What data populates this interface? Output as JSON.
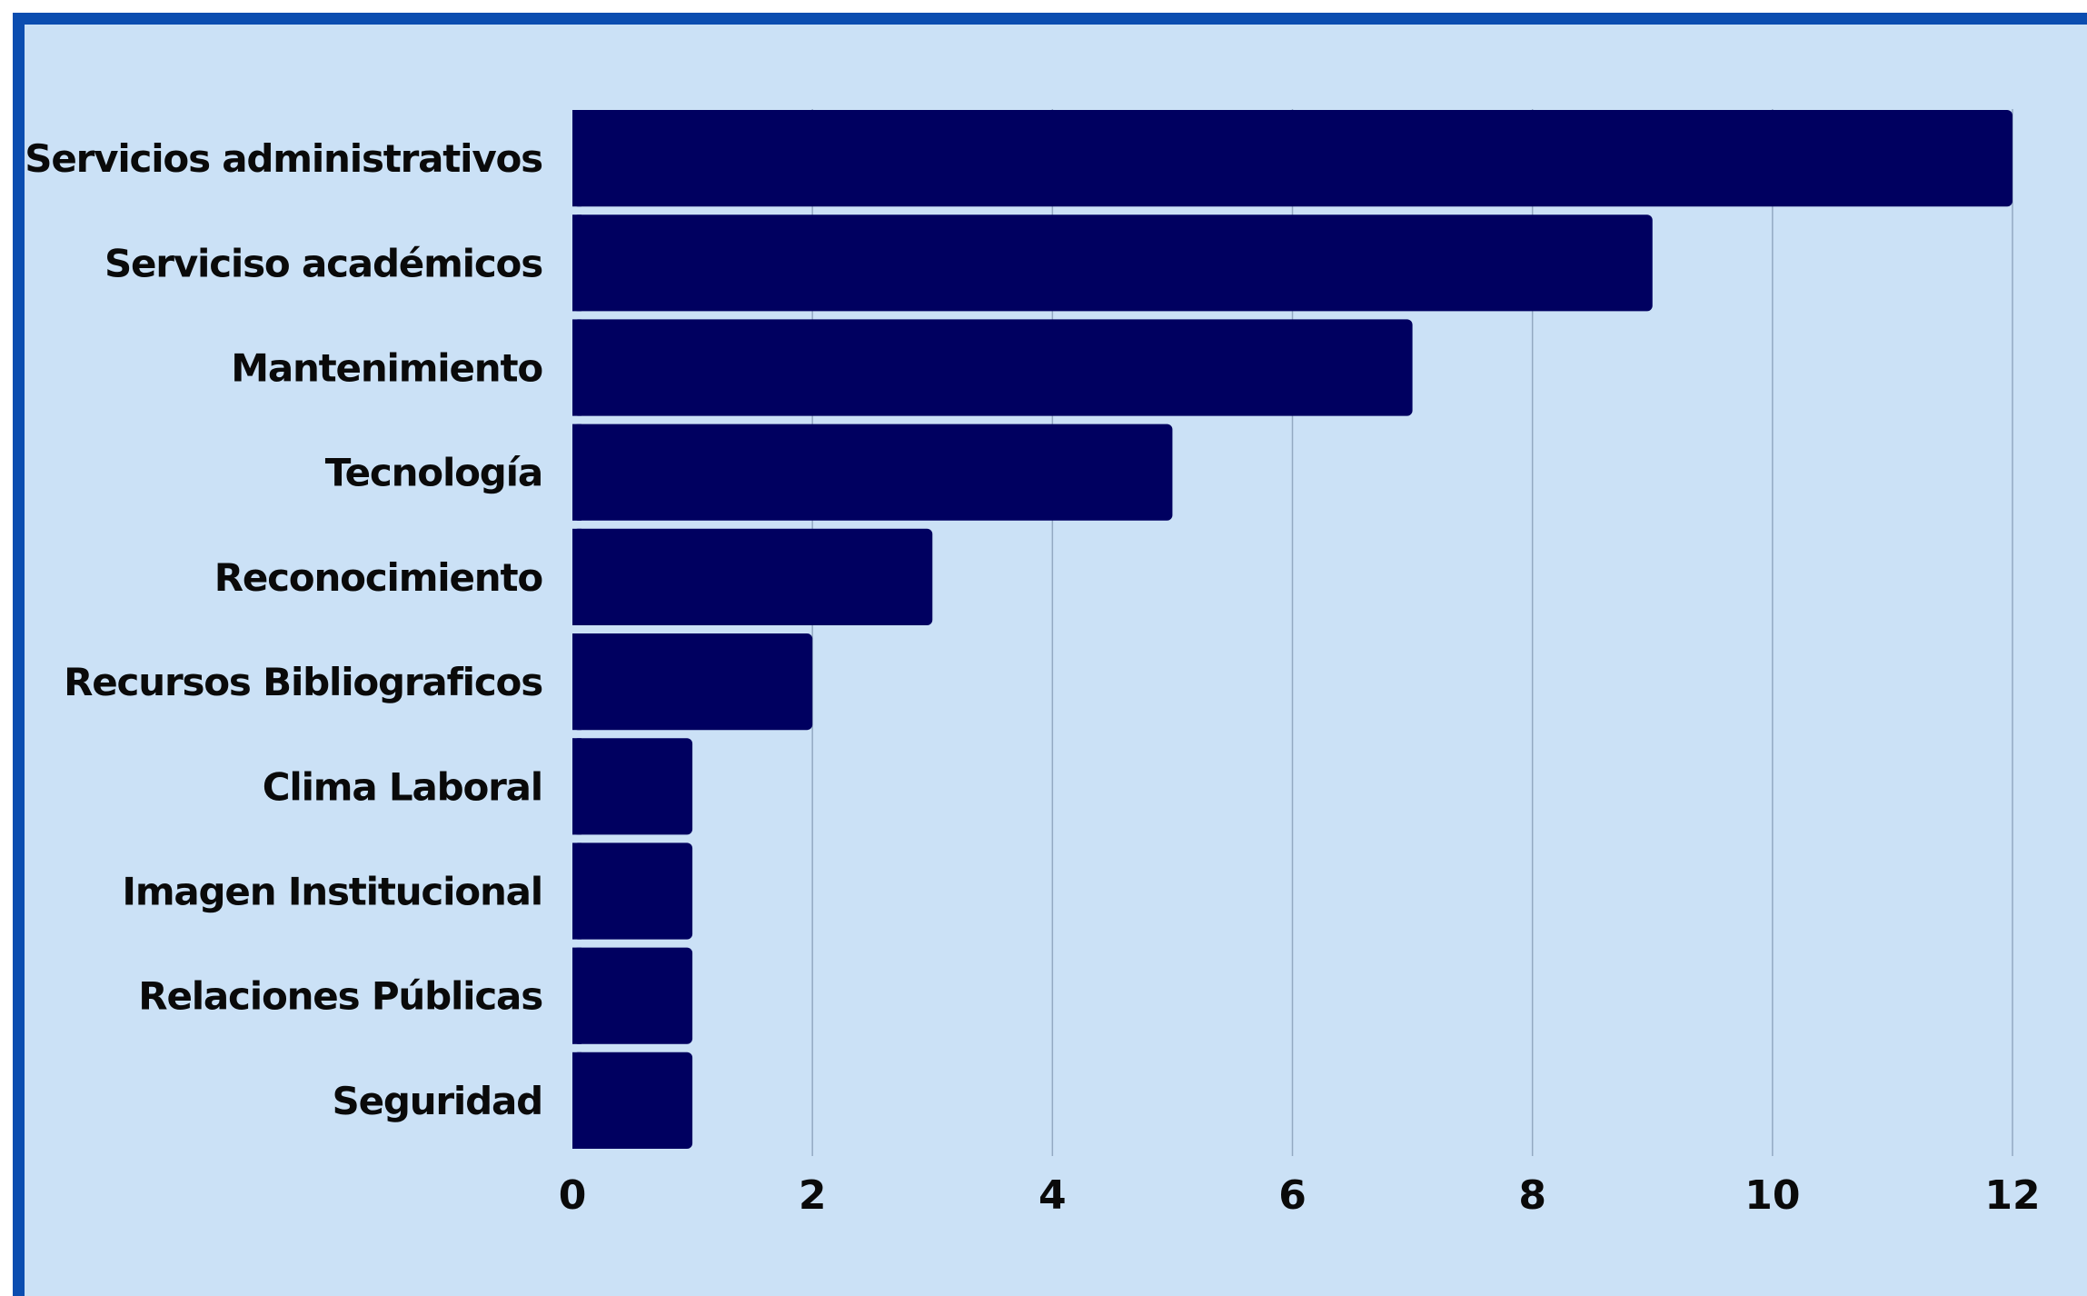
{
  "chart_data": {
    "type": "bar",
    "orientation": "horizontal",
    "categories": [
      "Servicios administrativos",
      "Serviciso académicos",
      "Mantenimiento",
      "Tecnología",
      "Reconocimiento",
      "Recursos Bibliograficos",
      "Clima Laboral",
      "Imagen Institucional",
      "Relaciones Públicas",
      "Seguridad"
    ],
    "values": [
      12,
      9,
      7,
      5,
      3,
      2,
      1,
      1,
      1,
      1
    ],
    "xlim": [
      0,
      12
    ],
    "xticks": [
      "0",
      "2",
      "4",
      "6",
      "8",
      "10",
      "12"
    ],
    "grid": "vertical",
    "legend": "none",
    "colors": {
      "bar": "#000060",
      "background": "#cbe1f6",
      "border": "#0b4db0",
      "grid": "#93a9c2",
      "text": "#0a0a0a"
    }
  }
}
